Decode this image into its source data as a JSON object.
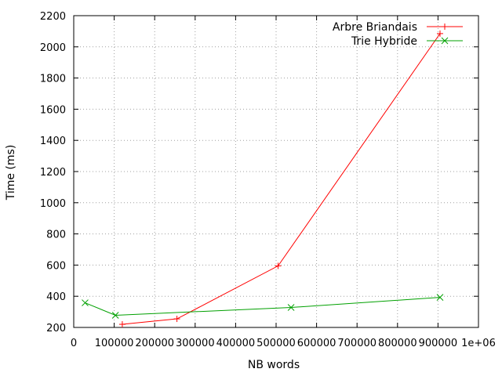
{
  "chart_data": {
    "type": "line",
    "xlabel": "NB words",
    "ylabel": "Time (ms)",
    "xlim": [
      0,
      1000000
    ],
    "ylim": [
      200,
      2200
    ],
    "x_ticks": [
      {
        "value": 0,
        "label": "0"
      },
      {
        "value": 100000,
        "label": "100000"
      },
      {
        "value": 200000,
        "label": "200000"
      },
      {
        "value": 300000,
        "label": "300000"
      },
      {
        "value": 400000,
        "label": "400000"
      },
      {
        "value": 500000,
        "label": "500000"
      },
      {
        "value": 600000,
        "label": "600000"
      },
      {
        "value": 700000,
        "label": "700000"
      },
      {
        "value": 800000,
        "label": "800000"
      },
      {
        "value": 900000,
        "label": "900000"
      },
      {
        "value": 1000000,
        "label": "1e+06"
      }
    ],
    "y_ticks": [
      {
        "value": 200,
        "label": "200"
      },
      {
        "value": 400,
        "label": "400"
      },
      {
        "value": 600,
        "label": "600"
      },
      {
        "value": 800,
        "label": "800"
      },
      {
        "value": 1000,
        "label": "1000"
      },
      {
        "value": 1200,
        "label": "1200"
      },
      {
        "value": 1400,
        "label": "1400"
      },
      {
        "value": 1600,
        "label": "1600"
      },
      {
        "value": 1800,
        "label": "1800"
      },
      {
        "value": 2000,
        "label": "2000"
      },
      {
        "value": 2200,
        "label": "2200"
      }
    ],
    "grid": true,
    "legend_position": "top-right",
    "series": [
      {
        "name": "Arbre Briandais",
        "color": "#ff0000",
        "marker": "plus",
        "x": [
          120000,
          255000,
          505000,
          905000
        ],
        "y": [
          220,
          255,
          595,
          2085
        ]
      },
      {
        "name": "Trie Hybride",
        "color": "#00a000",
        "marker": "cross",
        "x": [
          28000,
          103000,
          537000,
          905000
        ],
        "y": [
          358,
          278,
          328,
          393
        ]
      }
    ]
  }
}
